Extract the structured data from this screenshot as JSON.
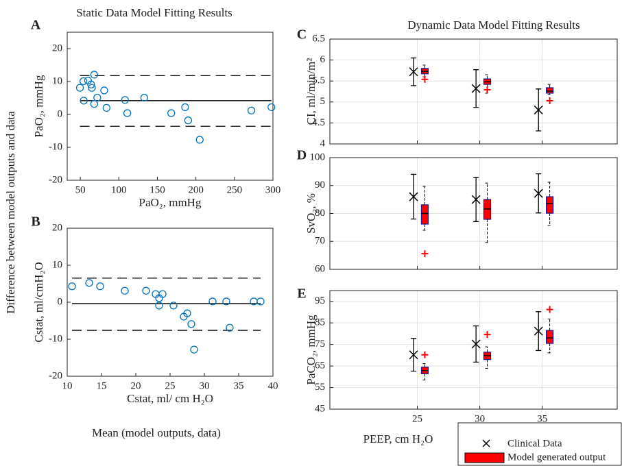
{
  "figure": {
    "static_title": "Static Data Model Fitting Results",
    "dynamic_title": "Dynamic Data Model Fitting Results",
    "ylabel": "Difference between model outputs and data",
    "xlabel": "Mean (model outputs, data)"
  },
  "chart_data": [
    {
      "type": "scatter",
      "label": "A",
      "xlabel": "PaO₂, mmHg",
      "ylabel": "PaO₂, mmHg",
      "color": "#0072bd",
      "x": [
        49.5,
        54,
        54.5,
        60,
        64,
        65,
        68,
        68,
        72,
        81,
        84,
        108,
        111,
        133,
        168,
        186,
        190,
        205,
        272,
        298
      ],
      "values": [
        8.1,
        10.1,
        4.2,
        10.3,
        9.1,
        8.1,
        12.1,
        3.2,
        5.1,
        7.3,
        2.0,
        4.4,
        0.4,
        5.1,
        0.4,
        2.2,
        -1.8,
        -7.7,
        1.2,
        2.2
      ],
      "mean": 4.2,
      "limits": [
        11.8,
        -3.6
      ],
      "xlim": [
        33,
        300
      ],
      "xticks": [
        50,
        100,
        150,
        200,
        250,
        300
      ],
      "ylim": [
        -20,
        25
      ],
      "yticks": [
        -20,
        -10,
        0,
        10,
        20
      ],
      "grid": false
    },
    {
      "type": "scatter",
      "label": "B",
      "xlabel": "Cstat, ml/ cm H₂O",
      "ylabel": "Cstat, ml/cmH₂O",
      "color": "#0072bd",
      "x": [
        10.7,
        13.2,
        14.8,
        18.4,
        21.5,
        22.9,
        23.4,
        23.4,
        23.9,
        25.5,
        27,
        27.5,
        28.1,
        28.5,
        31.2,
        33.2,
        33.7,
        37.2,
        38.2
      ],
      "values": [
        4.3,
        5.2,
        4.3,
        3.1,
        3.1,
        2.2,
        -0.9,
        1.1,
        2.2,
        -0.9,
        -3.9,
        -3.0,
        -5.9,
        -12.8,
        0.2,
        0.2,
        -6.9,
        0.2,
        0.2
      ],
      "mean": -0.4,
      "limits": [
        6.5,
        -7.6
      ],
      "xlim": [
        10,
        40
      ],
      "xticks": [
        10,
        15,
        20,
        25,
        30,
        35,
        40
      ],
      "ylim": [
        -20,
        20
      ],
      "yticks": [
        -20,
        -10,
        0,
        10,
        20
      ],
      "grid": false
    },
    {
      "type": "box",
      "label": "C",
      "ylabel": "CI, ml/min/m²",
      "xlim": [
        18,
        41
      ],
      "xticks": [
        25,
        30,
        35
      ],
      "xtick_labels": false,
      "ylim": [
        4,
        6.5
      ],
      "yticks": [
        4,
        4.5,
        5,
        5.5,
        6,
        6.5
      ],
      "grid": true,
      "series": [
        {
          "name": "Clinical Data",
          "color": "#000000",
          "x": [
            24.7,
            29.7,
            34.7
          ],
          "values": [
            5.72,
            5.32,
            4.81
          ],
          "errors": [
            0.33,
            0.45,
            0.5
          ]
        },
        {
          "name": "Model generated output",
          "color": "#ff0000",
          "x": [
            25.6,
            30.6,
            35.6
          ],
          "whisker_low": [
            5.6,
            5.21,
            5.18
          ],
          "q1": [
            5.67,
            5.42,
            5.21
          ],
          "median": [
            5.73,
            5.48,
            5.26
          ],
          "q3": [
            5.8,
            5.55,
            5.34
          ],
          "whisker_high": [
            5.88,
            5.65,
            5.42
          ],
          "outliers": [
            [
              5.54
            ],
            [
              5.29
            ],
            [
              5.03
            ]
          ]
        }
      ]
    },
    {
      "type": "box",
      "label": "D",
      "ylabel": "SvO₂, %",
      "xlim": [
        18,
        41
      ],
      "xticks": [
        25,
        30,
        35
      ],
      "xtick_labels": false,
      "ylim": [
        60,
        100
      ],
      "yticks": [
        60,
        70,
        80,
        90,
        100
      ],
      "grid": true,
      "series": [
        {
          "name": "Clinical Data",
          "color": "#000000",
          "x": [
            24.7,
            29.7,
            34.7
          ],
          "values": [
            86.0,
            85.0,
            87.2
          ],
          "errors": [
            8.0,
            7.9,
            7.0
          ]
        },
        {
          "name": "Model generated output",
          "color": "#ff0000",
          "x": [
            25.6,
            30.6,
            35.6
          ],
          "whisker_low": [
            74.0,
            69.6,
            75.7
          ],
          "q1": [
            76.2,
            77.9,
            80.1
          ],
          "median": [
            80.0,
            81.6,
            83.6
          ],
          "q3": [
            83.1,
            85.0,
            86.0
          ],
          "whisker_high": [
            89.7,
            90.9,
            91.2
          ],
          "outliers": [
            [
              65.6
            ],
            [],
            []
          ]
        }
      ]
    },
    {
      "type": "box",
      "label": "E",
      "ylabel": "PaCO₂, mmHg",
      "xlabel": "PEEP, cm H₂O",
      "xlim": [
        18,
        41
      ],
      "xticks": [
        25,
        30,
        35
      ],
      "xtick_labels": true,
      "ylim": [
        45,
        100
      ],
      "yticks": [
        45,
        55,
        65,
        75,
        85,
        95
      ],
      "grid": true,
      "series": [
        {
          "name": "Clinical Data",
          "color": "#000000",
          "x": [
            24.7,
            29.7,
            34.7
          ],
          "values": [
            70.2,
            75.2,
            81.2
          ],
          "errors": [
            7.6,
            8.4,
            9.0
          ]
        },
        {
          "name": "Model generated output",
          "color": "#ff0000",
          "x": [
            25.6,
            30.6,
            35.6
          ],
          "whisker_low": [
            58.5,
            63.9,
            71.1
          ],
          "q1": [
            61.4,
            68.0,
            75.5
          ],
          "median": [
            62.9,
            69.8,
            78.0
          ],
          "q3": [
            64.5,
            71.4,
            81.5
          ],
          "whisker_high": [
            66.1,
            73.9,
            86.8
          ],
          "outliers": [
            [
              70.2
            ],
            [
              79.6
            ],
            [
              91.2
            ]
          ]
        }
      ]
    }
  ]
}
